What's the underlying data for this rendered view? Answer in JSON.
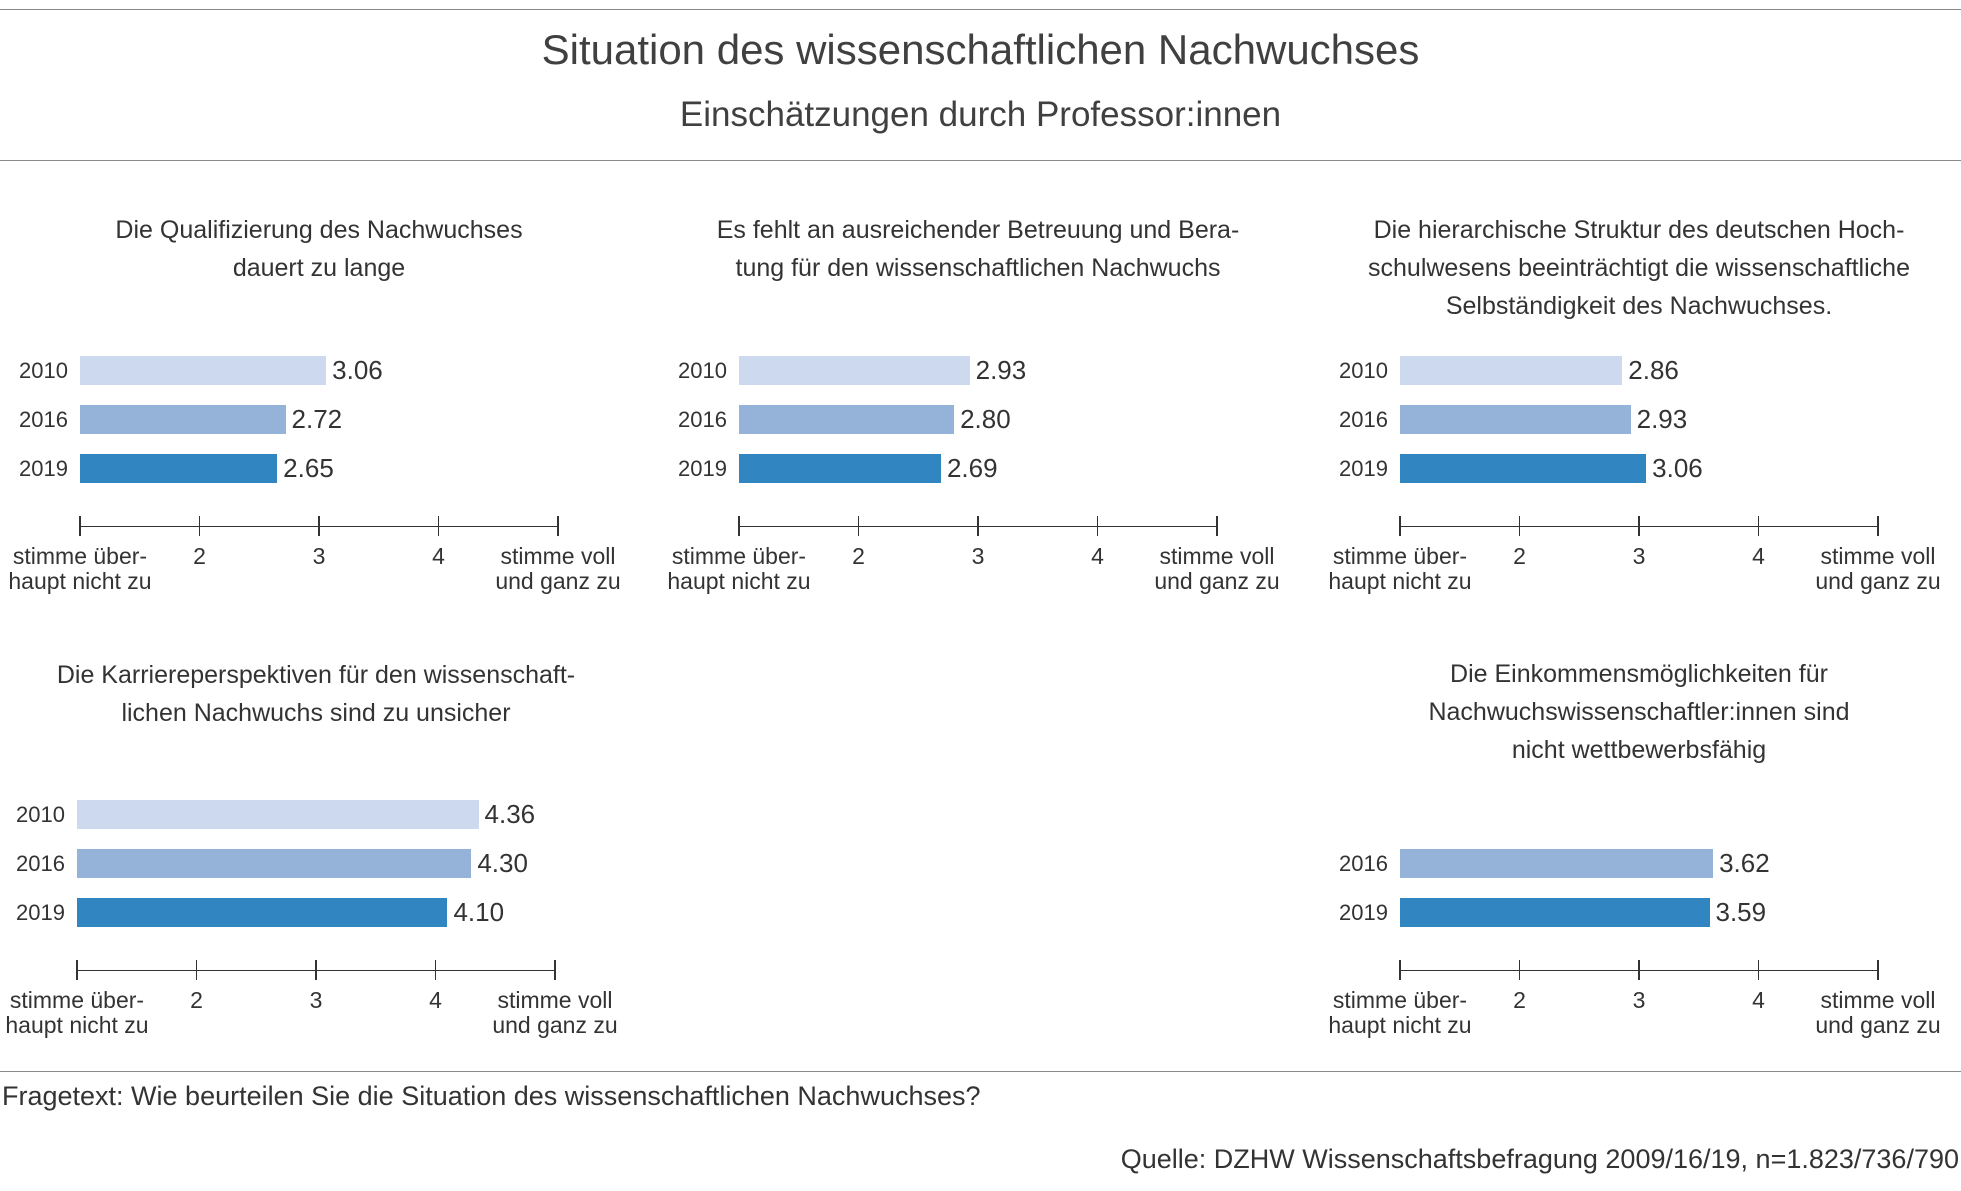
{
  "chart_data": {
    "type": "bar",
    "title": "Situation des wissenschaftlichen Nachwuchses",
    "subtitle": "Einschätzungen durch Professor:innen",
    "xlim": [
      1,
      5
    ],
    "ticks": [
      {
        "v": 1,
        "l1": "stimme über-",
        "l2": "haupt nicht zu"
      },
      {
        "v": 2,
        "l1": "2",
        "l2": ""
      },
      {
        "v": 3,
        "l1": "3",
        "l2": ""
      },
      {
        "v": 4,
        "l1": "4",
        "l2": ""
      },
      {
        "v": 5,
        "l1": "stimme voll",
        "l2": "und ganz zu"
      }
    ],
    "colors": {
      "2010": "#cdd9ef",
      "2016": "#95b3d9",
      "2019": "#3186c1"
    },
    "panels": [
      {
        "title": [
          "Die Qualifizierung des Nachwuchses",
          "dauert zu lange"
        ],
        "series": [
          {
            "name": "2010",
            "value": 3.06,
            "label": "3.06"
          },
          {
            "name": "2016",
            "value": 2.72,
            "label": "2.72"
          },
          {
            "name": "2019",
            "value": 2.65,
            "label": "2.65"
          }
        ]
      },
      {
        "title": [
          "Es fehlt an ausreichender Betreuung und Bera-",
          "tung für den wissenschaftlichen Nachwuchs"
        ],
        "series": [
          {
            "name": "2010",
            "value": 2.93,
            "label": "2.93"
          },
          {
            "name": "2016",
            "value": 2.8,
            "label": "2.80"
          },
          {
            "name": "2019",
            "value": 2.69,
            "label": "2.69"
          }
        ]
      },
      {
        "title": [
          "Die hierarchische Struktur des deutschen Hoch-",
          "schulwesens beeinträchtigt die wissenschaftliche",
          "Selbständigkeit des Nachwuchses."
        ],
        "series": [
          {
            "name": "2010",
            "value": 2.86,
            "label": "2.86"
          },
          {
            "name": "2016",
            "value": 2.93,
            "label": "2.93"
          },
          {
            "name": "2019",
            "value": 3.06,
            "label": "3.06"
          }
        ]
      },
      {
        "title": [
          "Die Karriereperspektiven für den wissenschaft-",
          "lichen Nachwuchs sind zu unsicher"
        ],
        "series": [
          {
            "name": "2010",
            "value": 4.36,
            "label": "4.36"
          },
          {
            "name": "2016",
            "value": 4.3,
            "label": "4.30"
          },
          {
            "name": "2019",
            "value": 4.1,
            "label": "4.10"
          }
        ]
      },
      {
        "title": [
          "Die Einkommensmöglichkeiten für",
          "Nachwuchswissenschaftler:innen sind",
          "nicht wettbewerbsfähig"
        ],
        "series": [
          {
            "name": "2016",
            "value": 3.62,
            "label": "3.62"
          },
          {
            "name": "2019",
            "value": 3.59,
            "label": "3.59"
          }
        ]
      }
    ]
  },
  "footer": {
    "note": "Fragetext: Wie beurteilen Sie die Situation des wissenschaftlichen Nachwuchses?",
    "source": "Quelle: DZHW Wissenschaftsbefragung 2009/16/19, n=1.823/736/790"
  }
}
